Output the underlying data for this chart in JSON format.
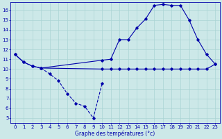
{
  "xlabel": "Graphe des températures (°c)",
  "bg_color": "#cce8e8",
  "line_color": "#0000aa",
  "ylim": [
    4.5,
    16.8
  ],
  "xlim": [
    -0.5,
    23.5
  ],
  "yticks": [
    5,
    6,
    7,
    8,
    9,
    10,
    11,
    12,
    13,
    14,
    15,
    16
  ],
  "xticks": [
    0,
    1,
    2,
    3,
    4,
    5,
    6,
    7,
    8,
    9,
    10,
    11,
    12,
    13,
    14,
    15,
    16,
    17,
    18,
    19,
    20,
    21,
    22,
    23
  ],
  "line_upper_x": [
    0,
    1,
    2,
    3,
    10,
    11,
    12,
    13,
    14,
    15,
    16,
    17,
    18,
    19,
    20,
    21,
    22,
    23
  ],
  "line_upper_y": [
    11.5,
    10.7,
    10.3,
    10.1,
    10.9,
    11.0,
    13.0,
    13.0,
    14.2,
    15.1,
    16.5,
    16.6,
    16.5,
    16.5,
    15.0,
    13.0,
    11.5,
    10.5
  ],
  "line_lower_x": [
    3,
    4,
    5,
    6,
    7,
    8,
    9,
    10
  ],
  "line_lower_y": [
    10.1,
    9.5,
    8.8,
    7.5,
    6.5,
    6.2,
    5.0,
    8.5
  ],
  "line_flat_x": [
    0,
    1,
    2,
    3,
    10,
    11,
    12,
    13,
    14,
    15,
    16,
    17,
    18,
    19,
    20,
    21,
    22,
    23
  ],
  "line_flat_y": [
    11.5,
    10.7,
    10.3,
    10.1,
    10.0,
    10.0,
    10.0,
    10.0,
    10.0,
    10.0,
    10.0,
    10.0,
    10.0,
    10.0,
    10.0,
    10.0,
    10.0,
    10.5
  ],
  "marker_style": "D",
  "marker_size": 1.8,
  "line_width": 0.8,
  "grid_color": "#aad4d4",
  "tick_fontsize": 5.0,
  "xlabel_fontsize": 5.5
}
